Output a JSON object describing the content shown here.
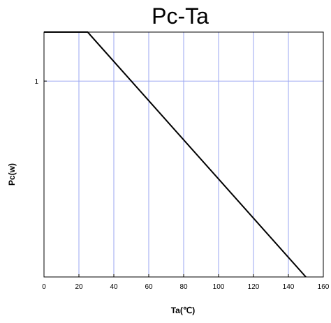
{
  "chart_data": {
    "type": "line",
    "title": "Pc-Ta",
    "xlabel": "Ta(℃)",
    "ylabel": "Pc(w)",
    "xlim": [
      0,
      160
    ],
    "ylim": [
      0,
      1.25
    ],
    "grid": true,
    "x_ticks": [
      "0",
      "20",
      "40",
      "60",
      "80",
      "100",
      "120",
      "140",
      "160"
    ],
    "y_ticks": [
      "1"
    ],
    "series": [
      {
        "x": [
          0,
          25,
          150
        ],
        "y": [
          1.25,
          1.25,
          0
        ],
        "color": "#000000"
      }
    ],
    "grid_color": "#9aa6f0"
  }
}
